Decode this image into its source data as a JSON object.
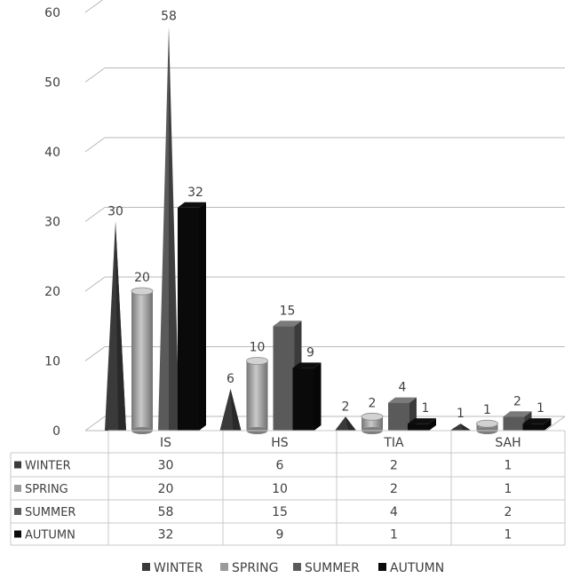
{
  "chart_data": {
    "type": "bar",
    "style": "3d-mixed-shapes-with-data-table",
    "categories": [
      "IS",
      "HS",
      "TIA",
      "SAH"
    ],
    "series": [
      {
        "name": "WINTER",
        "values": [
          30,
          6,
          2,
          1
        ],
        "shape": "cone",
        "color": "#3a3a3a"
      },
      {
        "name": "SPRING",
        "values": [
          20,
          10,
          2,
          1
        ],
        "shape": "cylinder",
        "color": "#9a9a9a"
      },
      {
        "name": "SUMMER",
        "values": [
          58,
          15,
          4,
          2
        ],
        "shape": "pyramid-then-box",
        "color": "#5a5a5a"
      },
      {
        "name": "AUTUMN",
        "values": [
          32,
          9,
          1,
          1
        ],
        "shape": "box",
        "color": "#0a0a0a"
      }
    ],
    "ylim": [
      0,
      60
    ],
    "yticks": [
      0,
      10,
      20,
      30,
      40,
      50,
      60
    ],
    "grid": true,
    "legend": "bottom",
    "data_table": true
  }
}
